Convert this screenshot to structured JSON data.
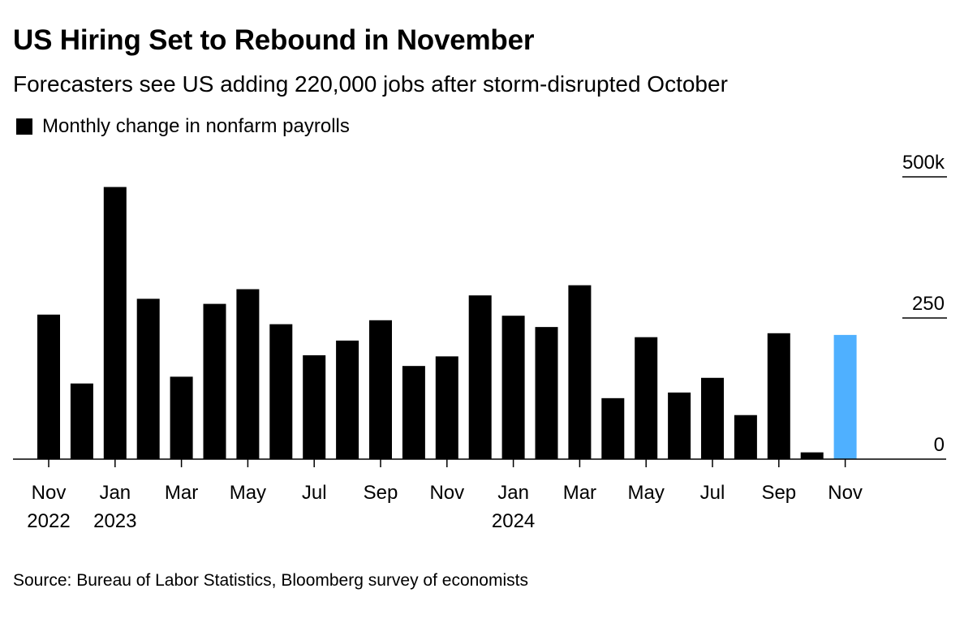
{
  "header": {
    "title": "US Hiring Set to Rebound in November",
    "subtitle": "Forecasters see US adding 220,000 jobs after storm-disrupted October"
  },
  "legend": {
    "label": "Monthly change in nonfarm payrolls"
  },
  "footer": {
    "source": "Source: Bureau of Labor Statistics, Bloomberg survey of economists"
  },
  "colors": {
    "actual": "#000000",
    "forecast": "#4fb0ff"
  },
  "chart_data": {
    "type": "bar",
    "ylim": [
      0,
      500
    ],
    "yticks": [
      {
        "value": 500,
        "label": "500k"
      },
      {
        "value": 250,
        "label": "250"
      },
      {
        "value": 0,
        "label": "0"
      }
    ],
    "categories": [
      "Nov 2022",
      "Dec 2022",
      "Jan 2023",
      "Feb 2023",
      "Mar 2023",
      "Apr 2023",
      "May 2023",
      "Jun 2023",
      "Jul 2023",
      "Aug 2023",
      "Sep 2023",
      "Oct 2023",
      "Nov 2023",
      "Dec 2023",
      "Jan 2024",
      "Feb 2024",
      "Mar 2024",
      "Apr 2024",
      "May 2024",
      "Jun 2024",
      "Jul 2024",
      "Aug 2024",
      "Sep 2024",
      "Oct 2024",
      "Nov 2024"
    ],
    "values": [
      256,
      134,
      482,
      284,
      146,
      275,
      301,
      239,
      184,
      210,
      246,
      165,
      182,
      290,
      254,
      234,
      308,
      108,
      216,
      118,
      144,
      78,
      223,
      12,
      220
    ],
    "forecast_index": 24,
    "xticks": [
      {
        "index": 0,
        "lines": [
          "Nov",
          "2022"
        ]
      },
      {
        "index": 2,
        "lines": [
          "Jan",
          "2023"
        ]
      },
      {
        "index": 4,
        "lines": [
          "Mar"
        ]
      },
      {
        "index": 6,
        "lines": [
          "May"
        ]
      },
      {
        "index": 8,
        "lines": [
          "Jul"
        ]
      },
      {
        "index": 10,
        "lines": [
          "Sep"
        ]
      },
      {
        "index": 12,
        "lines": [
          "Nov"
        ]
      },
      {
        "index": 14,
        "lines": [
          "Jan",
          "2024"
        ]
      },
      {
        "index": 16,
        "lines": [
          "Mar"
        ]
      },
      {
        "index": 18,
        "lines": [
          "May"
        ]
      },
      {
        "index": 20,
        "lines": [
          "Jul"
        ]
      },
      {
        "index": 22,
        "lines": [
          "Sep"
        ]
      },
      {
        "index": 24,
        "lines": [
          "Nov"
        ]
      }
    ],
    "grid": true
  }
}
